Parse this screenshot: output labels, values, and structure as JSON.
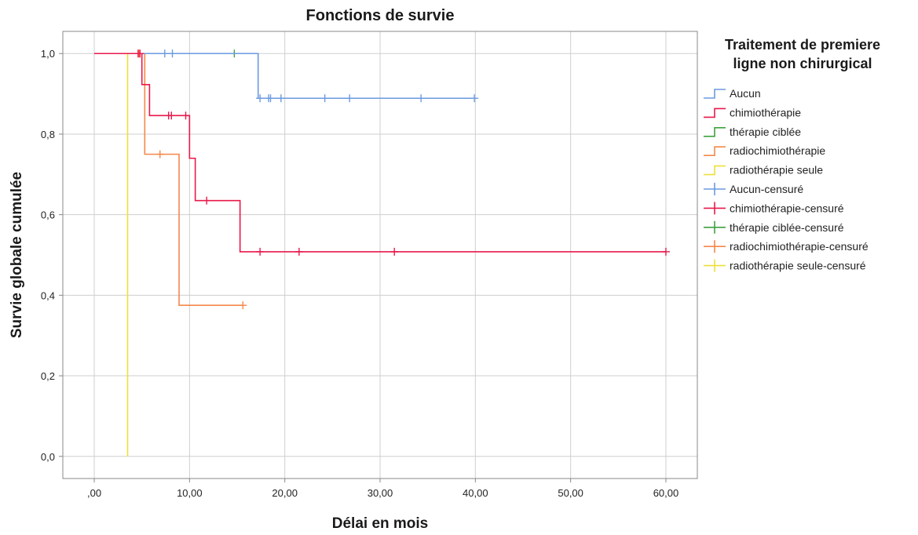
{
  "chart_data": {
    "type": "line",
    "step": true,
    "title": "Fonctions de survie",
    "xlabel": "Délai en mois",
    "ylabel": "Survie globale cumulée",
    "xlim": [
      -3.3,
      63.3
    ],
    "ylim": [
      -0.055,
      1.055
    ],
    "xticks": [
      0,
      10,
      20,
      30,
      40,
      50,
      60
    ],
    "xtick_labels": [
      ",00",
      "10,00",
      "20,00",
      "30,00",
      "40,00",
      "50,00",
      "60,00"
    ],
    "yticks": [
      0,
      0.2,
      0.4,
      0.6,
      0.8,
      1.0
    ],
    "ytick_labels": [
      "0,0",
      "0,2",
      "0,4",
      "0,6",
      "0,8",
      "1,0"
    ],
    "grid": true,
    "legend_position": "right",
    "legend_title_lines": [
      "Traitement de premiere",
      "ligne non chirurgical"
    ],
    "legend": [
      {
        "label": "Aucun",
        "kind": "line",
        "color": "#6a9ae0"
      },
      {
        "label": "chimiothérapie",
        "kind": "line",
        "color": "#e8194b"
      },
      {
        "label": "thérapie ciblée",
        "kind": "line",
        "color": "#3ea23e"
      },
      {
        "label": "radiochimiothérapie",
        "kind": "line",
        "color": "#f5884a"
      },
      {
        "label": "radiothérapie seule",
        "kind": "line",
        "color": "#ece03a"
      },
      {
        "label": "Aucun-censuré",
        "kind": "cross",
        "color": "#6a9ae0"
      },
      {
        "label": "chimiothérapie-censuré",
        "kind": "cross",
        "color": "#e8194b"
      },
      {
        "label": "thérapie ciblée-censuré",
        "kind": "cross",
        "color": "#3ea23e"
      },
      {
        "label": "radiochimiothérapie-censuré",
        "kind": "cross",
        "color": "#f5884a"
      },
      {
        "label": "radiothérapie seule-censuré",
        "kind": "cross",
        "color": "#ece03a"
      }
    ],
    "series": [
      {
        "name": "Aucun",
        "color": "#6a9ae0",
        "steps": [
          [
            0,
            1.0
          ],
          [
            17.2,
            0.889
          ],
          [
            39.9,
            0.889
          ]
        ],
        "censored": [
          [
            7.4,
            1.0
          ],
          [
            8.2,
            1.0
          ],
          [
            17.4,
            0.889
          ],
          [
            18.3,
            0.889
          ],
          [
            18.5,
            0.889
          ],
          [
            19.6,
            0.889
          ],
          [
            24.2,
            0.889
          ],
          [
            26.8,
            0.889
          ],
          [
            34.3,
            0.889
          ],
          [
            39.9,
            0.889
          ]
        ]
      },
      {
        "name": "chimiothérapie",
        "color": "#e8194b",
        "steps": [
          [
            0,
            1.0
          ],
          [
            5.0,
            0.923
          ],
          [
            5.8,
            0.846
          ],
          [
            10.0,
            0.74
          ],
          [
            10.6,
            0.635
          ],
          [
            15.3,
            0.508
          ],
          [
            60.0,
            0.508
          ]
        ],
        "censored": [
          [
            4.6,
            1.0
          ],
          [
            4.8,
            1.0
          ],
          [
            7.8,
            0.846
          ],
          [
            8.1,
            0.846
          ],
          [
            9.6,
            0.846
          ],
          [
            11.8,
            0.635
          ],
          [
            17.4,
            0.508
          ],
          [
            21.5,
            0.508
          ],
          [
            31.5,
            0.508
          ],
          [
            60.0,
            0.508
          ]
        ]
      },
      {
        "name": "thérapie ciblée",
        "color": "#3ea23e",
        "steps": [
          [
            0,
            1.0
          ],
          [
            14.7,
            1.0
          ]
        ],
        "censored": [
          [
            14.7,
            1.0
          ]
        ]
      },
      {
        "name": "radiochimiothérapie",
        "color": "#f5884a",
        "steps": [
          [
            0,
            1.0
          ],
          [
            5.3,
            0.75
          ],
          [
            8.9,
            0.375
          ],
          [
            15.6,
            0.375
          ]
        ],
        "censored": [
          [
            4.7,
            1.0
          ],
          [
            6.9,
            0.75
          ],
          [
            15.6,
            0.375
          ]
        ]
      },
      {
        "name": "radiothérapie seule",
        "color": "#ece03a",
        "steps": [
          [
            0,
            1.0
          ],
          [
            3.5,
            0.0
          ]
        ],
        "censored": []
      }
    ]
  }
}
